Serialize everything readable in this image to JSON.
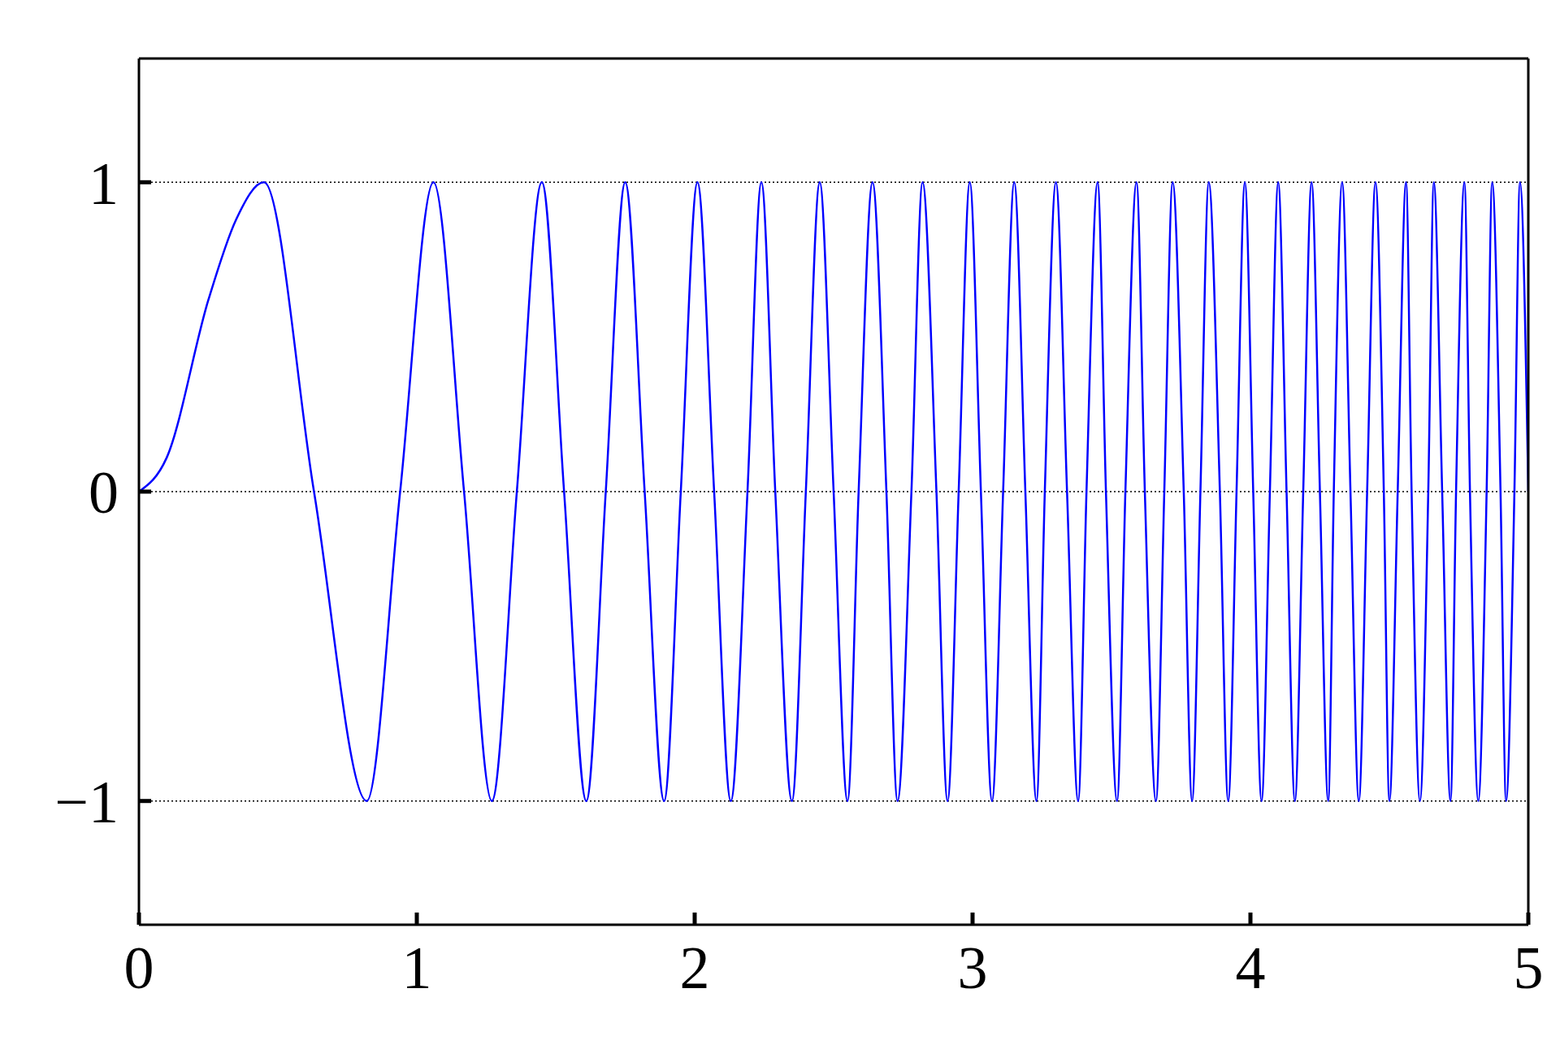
{
  "chart_data": {
    "type": "line",
    "xlim": [
      0,
      5
    ],
    "xticks": [
      0,
      1,
      2,
      3,
      4,
      5
    ],
    "ylim": [
      -1.4,
      1.4
    ],
    "yticks": [
      {
        "value": -1,
        "label": "−1"
      },
      0,
      1
    ],
    "grid": "y",
    "marker": "none",
    "line_style": "solid",
    "x": [
      0,
      0.1,
      0.25,
      0.35,
      0.45,
      0.63,
      0.82,
      0.94,
      1.06,
      1.17,
      1.27,
      1.36,
      1.45,
      1.53,
      1.61,
      1.68,
      1.75,
      1.82,
      1.89,
      1.95,
      2.01,
      2.07,
      2.13,
      2.19,
      2.24,
      2.29,
      2.35,
      2.4,
      2.45,
      2.5,
      2.55,
      2.59,
      2.64,
      2.69,
      2.73,
      2.78,
      2.82,
      2.87,
      2.91,
      2.95,
      2.99,
      3.03,
      3.07,
      3.11,
      3.15,
      3.19,
      3.23,
      3.26,
      3.3,
      3.34,
      3.38,
      3.41,
      3.45,
      3.48,
      3.52,
      3.55,
      3.59,
      3.62,
      3.66,
      3.69,
      3.72,
      3.76,
      3.79,
      3.82,
      3.85,
      3.89,
      3.92,
      3.95,
      3.98,
      4.01,
      4.04,
      4.07,
      4.1,
      4.13,
      4.16,
      4.19,
      4.22,
      4.25,
      4.28,
      4.3,
      4.33,
      4.36,
      4.39,
      4.42,
      4.45,
      4.48,
      4.5,
      4.53,
      4.56,
      4.58,
      4.61,
      4.64,
      4.66,
      4.69,
      4.72,
      4.74,
      4.77,
      4.79,
      4.82,
      4.85,
      4.87,
      4.9,
      4.92,
      4.95,
      4.97,
      5
    ],
    "series": [
      {
        "color": "#0000ff",
        "values": [
          0,
          0.11,
          0.62,
          0.88,
          1,
          0,
          -1,
          0,
          1,
          0,
          -1,
          0,
          1,
          0,
          -1,
          0,
          1,
          0,
          -1,
          0,
          1,
          0,
          -1,
          0,
          1,
          0,
          -1,
          0,
          1,
          0,
          -1,
          0,
          1,
          0,
          -1,
          0,
          1,
          0,
          -1,
          0,
          1,
          0,
          -1,
          0,
          1,
          0,
          -1,
          0,
          1,
          0,
          -1,
          0,
          1,
          0,
          -1,
          0,
          1,
          0,
          -1,
          0,
          1,
          0,
          -1,
          0,
          1,
          0,
          -1,
          0,
          1,
          0,
          -1,
          0,
          1,
          0,
          -1,
          0,
          1,
          0,
          -1,
          0,
          1,
          0,
          -1,
          0,
          1,
          0,
          -1,
          0,
          1,
          0,
          -1,
          0,
          1,
          0,
          -1,
          0,
          1,
          0,
          -1,
          0,
          1,
          0,
          -1,
          0,
          1,
          0
        ]
      }
    ]
  }
}
